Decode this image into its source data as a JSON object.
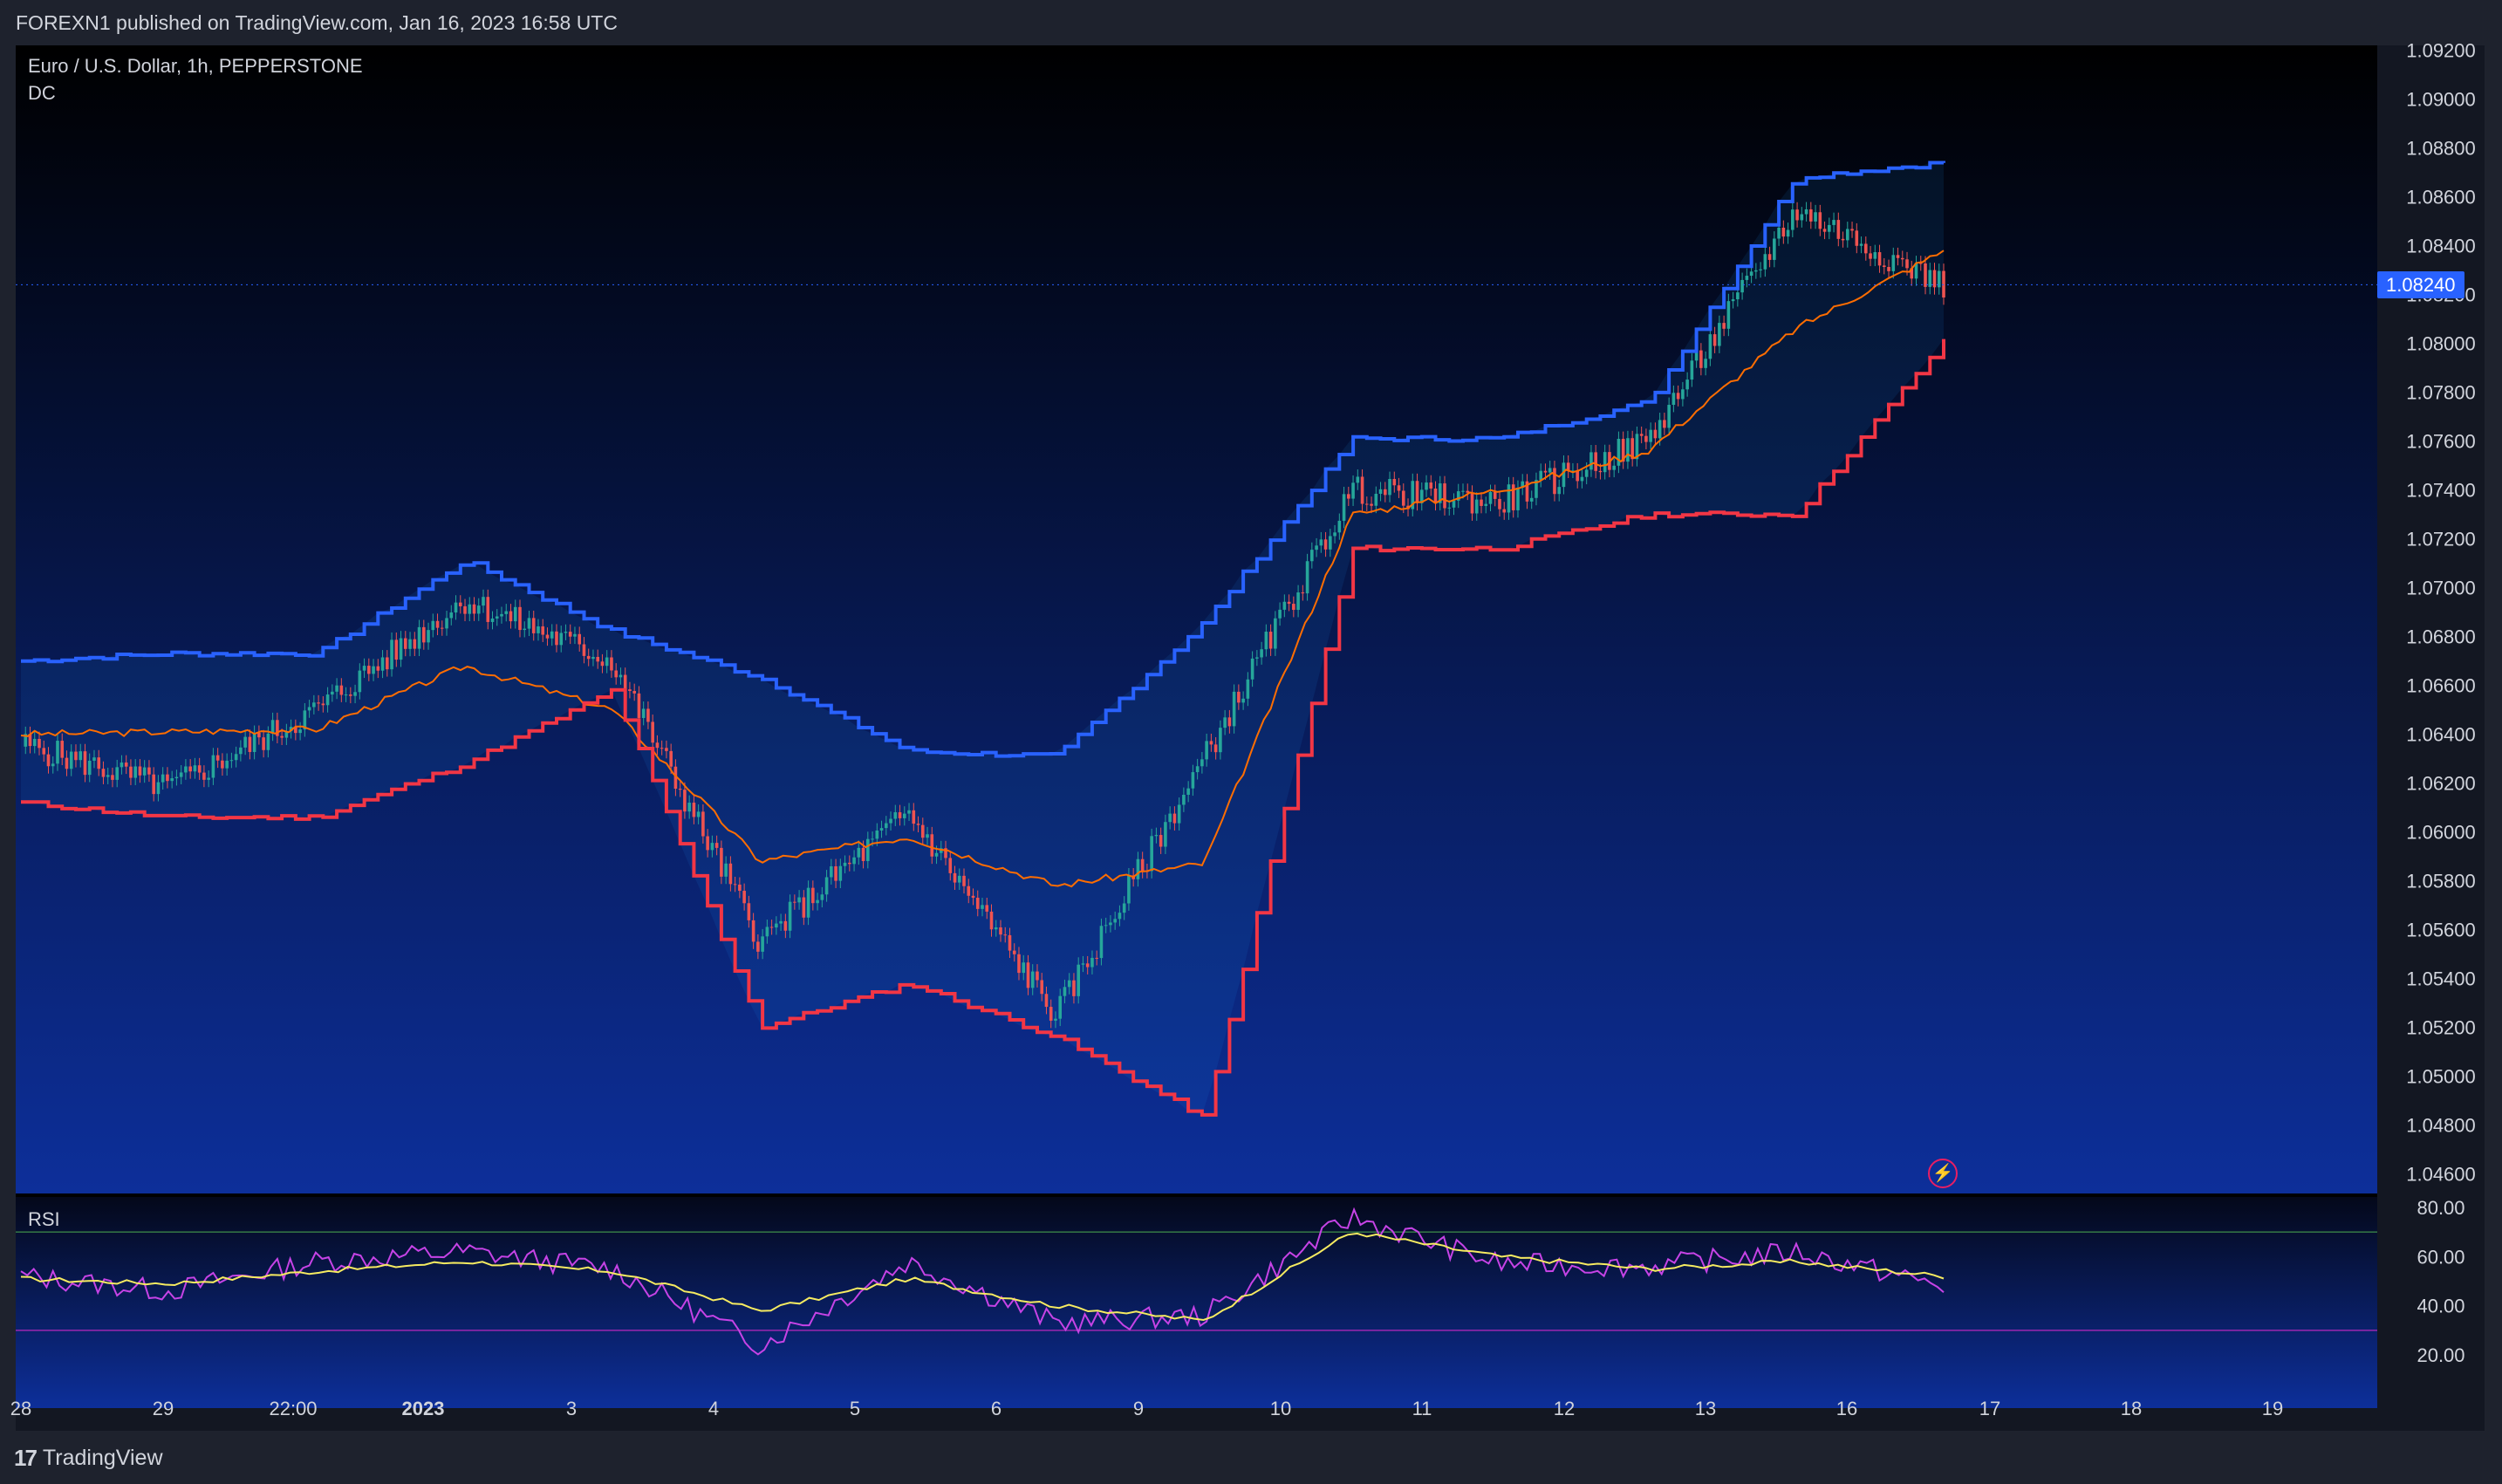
{
  "header": {
    "publisher_text": "FOREXN1 published on TradingView.com, Jan 16, 2023 16:58 UTC"
  },
  "legend": {
    "symbol": "Euro / U.S. Dollar, 1h, PEPPERSTONE",
    "indicator": "DC",
    "rsi_label": "RSI"
  },
  "footer": {
    "brand": "TradingView",
    "logo_mark": "17"
  },
  "colors": {
    "upper_band": "#2962ff",
    "lower_band": "#f23645",
    "basis": "#ff6d00",
    "bull_candle": "#26a69a",
    "bear_candle": "#ef5350",
    "rsi": "#c643e6",
    "rsi_ma": "#f6eb61",
    "price_tag": "#2962ff"
  },
  "chart_data": [
    {
      "type": "line",
      "title": "Euro / U.S. Dollar, 1h, PEPPERSTONE",
      "indicator": "DC (Donchian Channel)",
      "x_tick_labels": [
        "28",
        "29",
        "22:00",
        "2023",
        "3",
        "4",
        "5",
        "6",
        "9",
        "10",
        "11",
        "12",
        "13",
        "16",
        "17",
        "18",
        "19"
      ],
      "y_tick_labels": [
        "1.09200",
        "1.09000",
        "1.08800",
        "1.08600",
        "1.08400",
        "1.08200",
        "1.08000",
        "1.07800",
        "1.07600",
        "1.07400",
        "1.07200",
        "1.07000",
        "1.06800",
        "1.06600",
        "1.06400",
        "1.06200",
        "1.06000",
        "1.05800",
        "1.05600",
        "1.05400",
        "1.05200",
        "1.05000",
        "1.04800",
        "1.04600"
      ],
      "ylim": [
        1.0452,
        1.0922
      ],
      "last_price": "1.08240",
      "x_session_index": [
        "28",
        "29",
        "22:00",
        "2023",
        "3",
        "4",
        "5",
        "6",
        "9",
        "10",
        "11",
        "12",
        "13",
        "16"
      ],
      "series": [
        {
          "name": "Upper",
          "values": [
            1.067,
            1.0673,
            1.0673,
            1.0711,
            1.0682,
            1.0663,
            1.0633,
            1.0631,
            1.0686,
            1.0761,
            1.0761,
            1.0776,
            1.0868,
            1.0874
          ]
        },
        {
          "name": "Basis",
          "values": [
            1.064,
            1.0641,
            1.0642,
            1.0668,
            1.065,
            1.0588,
            1.0598,
            1.0578,
            1.0587,
            1.073,
            1.074,
            1.0756,
            1.0806,
            1.0838
          ]
        },
        {
          "name": "Lower",
          "values": [
            1.0612,
            1.0606,
            1.0606,
            1.0628,
            1.0658,
            1.052,
            1.0538,
            1.0516,
            1.0483,
            1.0716,
            1.0716,
            1.073,
            1.073,
            1.0801
          ]
        },
        {
          "name": "Close",
          "values": [
            1.0636,
            1.0618,
            1.065,
            1.0695,
            1.067,
            1.0555,
            1.0608,
            1.0525,
            1.063,
            1.074,
            1.0735,
            1.076,
            1.0855,
            1.0824
          ]
        }
      ]
    },
    {
      "type": "line",
      "title": "RSI",
      "y_tick_labels": [
        "80.00",
        "60.00",
        "40.00",
        "20.00"
      ],
      "ylim": [
        14,
        80
      ],
      "bands": [
        70,
        30
      ],
      "x_session_index": [
        "28",
        "29",
        "22:00",
        "2023",
        "3",
        "4",
        "5",
        "6",
        "9",
        "10",
        "11",
        "12",
        "13",
        "16"
      ],
      "series": [
        {
          "name": "RSI",
          "values": [
            52,
            46,
            58,
            62,
            55,
            24,
            58,
            33,
            36,
            76,
            57,
            56,
            62,
            48
          ]
        },
        {
          "name": "RSI MA",
          "values": [
            51,
            49,
            54,
            58,
            54,
            38,
            51,
            40,
            34,
            70,
            60,
            55,
            58,
            52
          ]
        }
      ]
    }
  ]
}
